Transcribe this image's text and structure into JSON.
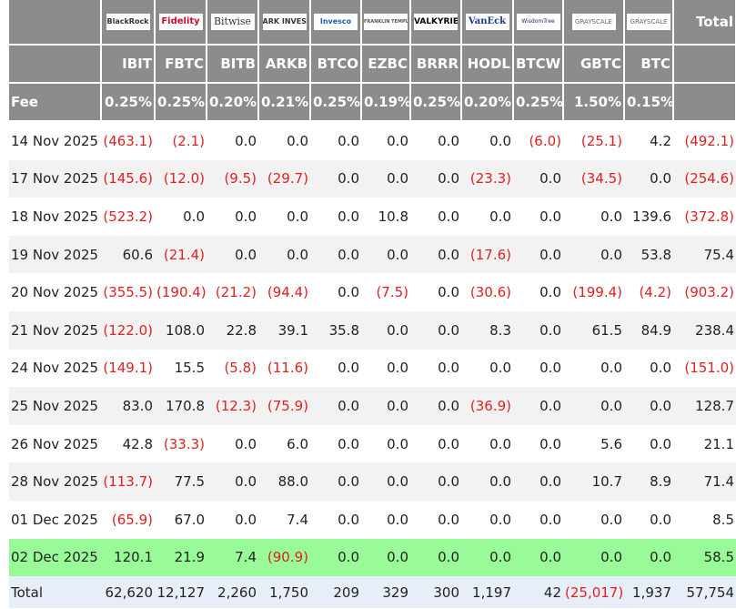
{
  "header": {
    "logos": [
      "BlackRock",
      "Fidelity",
      "Bitwise",
      "ARK INVEST",
      "Invesco",
      "FRANKLIN TEMPLETON",
      "VALKYRIE",
      "VanEck",
      "WisdomTree",
      "GRAYSCALE",
      "GRAYSCALE"
    ],
    "total_label": "Total",
    "tickers": [
      "IBIT",
      "FBTC",
      "BITB",
      "ARKB",
      "BTCO",
      "EZBC",
      "BRRR",
      "HODL",
      "BTCW",
      "GBTC",
      "BTC"
    ],
    "fee_label": "Fee",
    "fees": [
      "0.25%",
      "0.25%",
      "0.20%",
      "0.21%",
      "0.25%",
      "0.19%",
      "0.25%",
      "0.20%",
      "0.25%",
      "1.50%",
      "0.15%"
    ]
  },
  "rows": [
    {
      "date": "14 Nov 2025",
      "values": [
        "(463.1)",
        "(2.1)",
        "0.0",
        "0.0",
        "0.0",
        "0.0",
        "0.0",
        "0.0",
        "(6.0)",
        "(25.1)",
        "4.2",
        "(492.1)"
      ]
    },
    {
      "date": "17 Nov 2025",
      "values": [
        "(145.6)",
        "(12.0)",
        "(9.5)",
        "(29.7)",
        "0.0",
        "0.0",
        "0.0",
        "(23.3)",
        "0.0",
        "(34.5)",
        "0.0",
        "(254.6)"
      ]
    },
    {
      "date": "18 Nov 2025",
      "values": [
        "(523.2)",
        "0.0",
        "0.0",
        "0.0",
        "0.0",
        "10.8",
        "0.0",
        "0.0",
        "0.0",
        "0.0",
        "139.6",
        "(372.8)"
      ]
    },
    {
      "date": "19 Nov 2025",
      "values": [
        "60.6",
        "(21.4)",
        "0.0",
        "0.0",
        "0.0",
        "0.0",
        "0.0",
        "(17.6)",
        "0.0",
        "0.0",
        "53.8",
        "75.4"
      ]
    },
    {
      "date": "20 Nov 2025",
      "values": [
        "(355.5)",
        "(190.4)",
        "(21.2)",
        "(94.4)",
        "0.0",
        "(7.5)",
        "0.0",
        "(30.6)",
        "0.0",
        "(199.4)",
        "(4.2)",
        "(903.2)"
      ]
    },
    {
      "date": "21 Nov 2025",
      "values": [
        "(122.0)",
        "108.0",
        "22.8",
        "39.1",
        "35.8",
        "0.0",
        "0.0",
        "8.3",
        "0.0",
        "61.5",
        "84.9",
        "238.4"
      ]
    },
    {
      "date": "24 Nov 2025",
      "values": [
        "(149.1)",
        "15.5",
        "(5.8)",
        "(11.6)",
        "0.0",
        "0.0",
        "0.0",
        "0.0",
        "0.0",
        "0.0",
        "0.0",
        "(151.0)"
      ]
    },
    {
      "date": "25 Nov 2025",
      "values": [
        "83.0",
        "170.8",
        "(12.3)",
        "(75.9)",
        "0.0",
        "0.0",
        "0.0",
        "(36.9)",
        "0.0",
        "0.0",
        "0.0",
        "128.7"
      ]
    },
    {
      "date": "26 Nov 2025",
      "values": [
        "42.8",
        "(33.3)",
        "0.0",
        "6.0",
        "0.0",
        "0.0",
        "0.0",
        "0.0",
        "0.0",
        "5.6",
        "0.0",
        "21.1"
      ]
    },
    {
      "date": "28 Nov 2025",
      "values": [
        "(113.7)",
        "77.5",
        "0.0",
        "88.0",
        "0.0",
        "0.0",
        "0.0",
        "0.0",
        "0.0",
        "10.7",
        "8.9",
        "71.4"
      ]
    },
    {
      "date": "01 Dec 2025",
      "values": [
        "(65.9)",
        "67.0",
        "0.0",
        "7.4",
        "0.0",
        "0.0",
        "0.0",
        "0.0",
        "0.0",
        "0.0",
        "0.0",
        "8.5"
      ]
    },
    {
      "date": "02 Dec 2025",
      "values": [
        "120.1",
        "21.9",
        "7.4",
        "(90.9)",
        "0.0",
        "0.0",
        "0.0",
        "0.0",
        "0.0",
        "0.0",
        "0.0",
        "58.5"
      ]
    }
  ],
  "total": {
    "label": "Total",
    "values": [
      "62,620",
      "12,127",
      "2,260",
      "1,750",
      "209",
      "329",
      "300",
      "1,197",
      "42",
      "(25,017)",
      "1,937",
      "57,754"
    ]
  }
}
